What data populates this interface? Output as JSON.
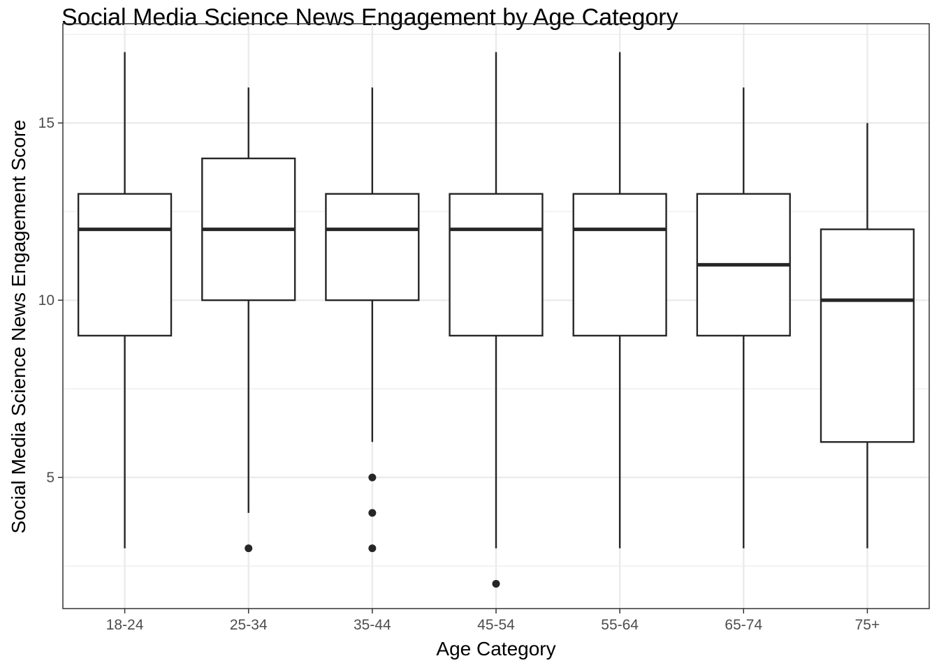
{
  "chart_data": {
    "type": "boxplot",
    "title": "Social Media Science News Engagement by Age Category",
    "xlabel": "Age Category",
    "ylabel": "Social Media Science News Engagement Score",
    "ylim": [
      1.3,
      17.8
    ],
    "yticks": [
      5,
      10,
      15
    ],
    "grid": true,
    "categories": [
      "18-24",
      "25-34",
      "35-44",
      "45-54",
      "55-64",
      "65-74",
      "75+"
    ],
    "boxes": [
      {
        "category": "18-24",
        "whisker_low": 3,
        "q1": 9,
        "median": 12,
        "q3": 13,
        "whisker_high": 17,
        "outliers": []
      },
      {
        "category": "25-34",
        "whisker_low": 4,
        "q1": 10,
        "median": 12,
        "q3": 14,
        "whisker_high": 16,
        "outliers": [
          3
        ]
      },
      {
        "category": "35-44",
        "whisker_low": 6,
        "q1": 10,
        "median": 12,
        "q3": 13,
        "whisker_high": 16,
        "outliers": [
          5,
          4,
          3
        ]
      },
      {
        "category": "45-54",
        "whisker_low": 3,
        "q1": 9,
        "median": 12,
        "q3": 13,
        "whisker_high": 17,
        "outliers": [
          2
        ]
      },
      {
        "category": "55-64",
        "whisker_low": 3,
        "q1": 9,
        "median": 12,
        "q3": 13,
        "whisker_high": 17,
        "outliers": []
      },
      {
        "category": "65-74",
        "whisker_low": 3,
        "q1": 9,
        "median": 11,
        "q3": 13,
        "whisker_high": 16,
        "outliers": []
      },
      {
        "category": "75+",
        "whisker_low": 3,
        "q1": 6,
        "median": 10,
        "q3": 12,
        "whisker_high": 15,
        "outliers": []
      }
    ],
    "colors": {
      "box_line": "#262626",
      "grid": "#ebebeb",
      "panel_border": "#333333",
      "tick_text": "#4d4d4d"
    }
  }
}
